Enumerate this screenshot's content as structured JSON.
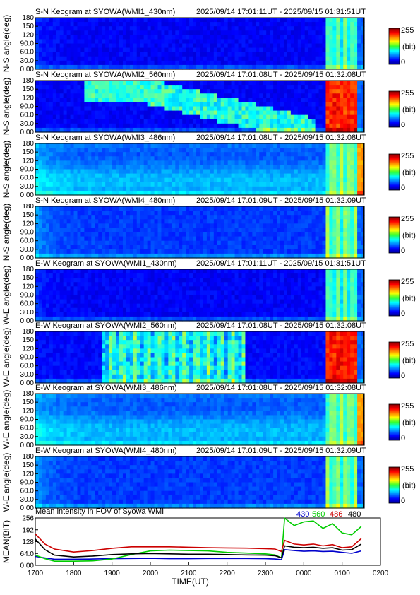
{
  "panels": [
    {
      "prefix": "S-N Keogram at SYOWA(WMI1_430nm)",
      "range": "2025/09/14 17:01:11UT - 2025/09/15 01:31:51UT",
      "ylabel": "N-S angle(deg)",
      "profile": "430"
    },
    {
      "prefix": "S-N Keogram at SYOWA(WMI2_560nm)",
      "range": "2025/09/14 17:01:08UT - 2025/09/15 01:32:08UT",
      "ylabel": "N-S angle(deg)",
      "profile": "560sn"
    },
    {
      "prefix": "S-N Keogram at SYOWA(WMI3_486nm)",
      "range": "2025/09/14 17:01:08UT - 2025/09/15 01:32:08UT",
      "ylabel": "N-S angle(deg)",
      "profile": "486"
    },
    {
      "prefix": "S-N Keogram at SYOWA(WMI4_480nm)",
      "range": "2025/09/14 17:01:09UT - 2025/09/15 01:32:09UT",
      "ylabel": "N-S angle(deg)",
      "profile": "480"
    },
    {
      "prefix": "E-W Keogram at SYOWA(WMI1_430nm)",
      "range": "2025/09/14 17:01:11UT - 2025/09/15 01:31:51UT",
      "ylabel": "W-E angle(deg)",
      "profile": "430"
    },
    {
      "prefix": "E-W Keogram at SYOWA(WMI2_560nm)",
      "range": "2025/09/14 17:01:08UT - 2025/09/15 01:32:08UT",
      "ylabel": "W-E angle(deg)",
      "profile": "560ew"
    },
    {
      "prefix": "E-W Keogram at SYOWA(WMI3_486nm)",
      "range": "2025/09/14 17:01:08UT - 2025/09/15 01:32:08UT",
      "ylabel": "W-E angle(deg)",
      "profile": "486"
    },
    {
      "prefix": "E-W Keogram at SYOWA(WMI4_480nm)",
      "range": "2025/09/14 17:01:09UT - 2025/09/15 01:32:09UT",
      "ylabel": "W-E angle(deg)",
      "profile": "480"
    }
  ],
  "keogram_yticks": [
    "0.00",
    "30.0",
    "60.0",
    "90.0",
    "120",
    "150",
    "180"
  ],
  "colorbar": {
    "max_label": "255",
    "unit_label": "(bit)",
    "min_label": "0"
  },
  "chart_data": {
    "type": "line",
    "title": "Mean intensity in FOV of Syowa WMI",
    "xlabel": "TIME(UT)",
    "ylabel": "MEAN(BIT)",
    "ylim": [
      0,
      256
    ],
    "xlim": [
      17.0,
      26.0
    ],
    "xticks": [
      "1700",
      "1800",
      "1900",
      "2000",
      "2100",
      "2200",
      "2300",
      "0000",
      "0100",
      "0200"
    ],
    "yticks": [
      "256",
      "192",
      "128",
      "64.0",
      "0.00"
    ],
    "grid": false,
    "legend_position": "top-right",
    "x": [
      17.0,
      17.25,
      17.5,
      18.0,
      18.5,
      19.0,
      19.5,
      20.0,
      20.5,
      21.0,
      21.5,
      22.0,
      22.5,
      23.0,
      23.25,
      23.42,
      23.5,
      23.75,
      24.0,
      24.25,
      24.5,
      24.75,
      25.0,
      25.25,
      25.5
    ],
    "series": [
      {
        "name": "430",
        "color": "#0000cc",
        "values": [
          48,
          40,
          33,
          33,
          34,
          36,
          37,
          38,
          36,
          36,
          37,
          37,
          37,
          36,
          34,
          30,
          85,
          80,
          76,
          78,
          75,
          76,
          70,
          65,
          78
        ]
      },
      {
        "name": "560",
        "color": "#00cc00",
        "values": [
          55,
          36,
          22,
          22,
          24,
          34,
          58,
          78,
          82,
          80,
          78,
          70,
          66,
          62,
          56,
          40,
          255,
          215,
          235,
          240,
          200,
          225,
          175,
          165,
          210
        ]
      },
      {
        "name": "486",
        "color": "#cc0000",
        "values": [
          170,
          115,
          88,
          72,
          80,
          92,
          100,
          100,
          100,
          98,
          95,
          94,
          93,
          90,
          88,
          75,
          135,
          115,
          110,
          115,
          105,
          112,
          95,
          100,
          145
        ]
      },
      {
        "name": "480",
        "color": "#000000",
        "values": [
          142,
          85,
          55,
          45,
          50,
          58,
          62,
          64,
          62,
          60,
          60,
          58,
          56,
          55,
          52,
          40,
          105,
          98,
          95,
          98,
          92,
          95,
          82,
          85,
          115
        ]
      }
    ]
  }
}
